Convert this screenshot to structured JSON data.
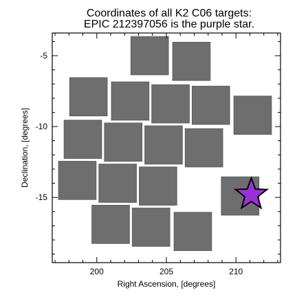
{
  "chart_data": {
    "type": "scatter",
    "title": "Coordinates of all K2 C06 targets:",
    "subtitle": "EPIC 212397056 is the purple star.",
    "xlabel": "Right Ascension, [degrees]",
    "ylabel": "Declination, [degrees]",
    "xlim": [
      196.8,
      213.2
    ],
    "ylim": [
      -19.6,
      -3.4
    ],
    "x_ticks": [
      200,
      205,
      210
    ],
    "y_ticks": [
      -5,
      -10,
      -15
    ],
    "grid": false,
    "legend": "none",
    "colors": {
      "targets": "#6e6e6e",
      "highlight": "#9b30d9"
    },
    "series": [
      {
        "marker": "square",
        "modules": [
          {
            "center": [
              203.8,
              -5.0
            ],
            "half": 1.35
          },
          {
            "center": [
              206.8,
              -5.4
            ],
            "half": 1.35
          },
          {
            "center": [
              199.4,
              -7.9
            ],
            "half": 1.35
          },
          {
            "center": [
              202.4,
              -8.2
            ],
            "half": 1.35
          },
          {
            "center": [
              205.3,
              -8.4
            ],
            "half": 1.35
          },
          {
            "center": [
              208.2,
              -8.5
            ],
            "half": 1.35
          },
          {
            "center": [
              211.2,
              -9.2
            ],
            "half": 1.35
          },
          {
            "center": [
              199.0,
              -10.9
            ],
            "half": 1.35
          },
          {
            "center": [
              201.9,
              -11.1
            ],
            "half": 1.35
          },
          {
            "center": [
              204.8,
              -11.3
            ],
            "half": 1.35
          },
          {
            "center": [
              207.7,
              -11.5
            ],
            "half": 1.35
          },
          {
            "center": [
              198.6,
              -13.8
            ],
            "half": 1.35
          },
          {
            "center": [
              201.5,
              -14.0
            ],
            "half": 1.35
          },
          {
            "center": [
              204.4,
              -14.2
            ],
            "half": 1.35
          },
          {
            "center": [
              210.3,
              -14.9
            ],
            "half": 1.35
          },
          {
            "center": [
              201.0,
              -16.9
            ],
            "half": 1.35
          },
          {
            "center": [
              203.9,
              -17.1
            ],
            "half": 1.35
          },
          {
            "center": [
              206.9,
              -17.4
            ],
            "half": 1.35
          }
        ]
      },
      {
        "marker": "star",
        "points": [
          {
            "x": 211.1,
            "y": -14.8
          }
        ]
      }
    ]
  }
}
